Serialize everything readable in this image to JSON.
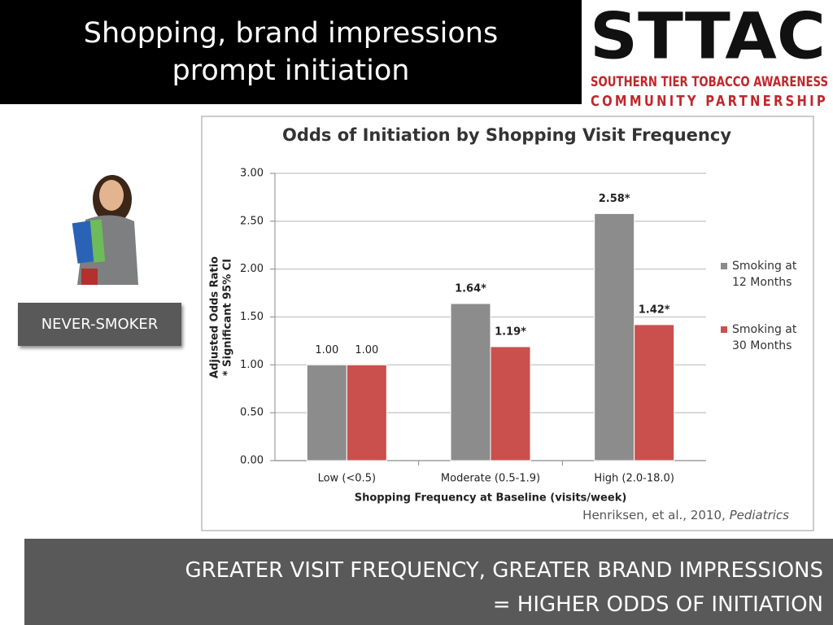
{
  "slide_title": "Shopping, brand impressions prompt initiation",
  "logo": {
    "name": "STTAC",
    "line1": "SOUTHERN TIER TOBACCO AWARENESS",
    "line2": "COMMUNITY PARTNERSHIP"
  },
  "label": "NEVER-SMOKER",
  "citation": {
    "text": "Henriksen, et al., 2010,",
    "journal": "Pediatrics"
  },
  "banner": [
    "GREATER VISIT FREQUENCY,  GREATER BRAND IMPRESSIONS",
    "=  HIGHER ODDS OF INITIATION"
  ],
  "chart_data": {
    "type": "bar",
    "title": "Odds of Initiation by Shopping Visit Frequency",
    "x_label": "Shopping Frequency at Baseline (visits/week)",
    "y_label": [
      "Adjusted Odds Ratio",
      "* Significant 95% CI"
    ],
    "categories": [
      "Low (<0.5)",
      "Moderate (0.5-1.9)",
      "High (2.0-18.0)"
    ],
    "series": [
      {
        "name": "Smoking at 12 Months",
        "color": "#8c8c8c",
        "values": [
          1.0,
          1.64,
          2.58
        ],
        "value_labels": [
          "1.00",
          "1.64*",
          "2.58*"
        ]
      },
      {
        "name": "Smoking at 30 Months",
        "color": "#c9504d",
        "values": [
          1.0,
          1.19,
          1.42
        ],
        "value_labels": [
          "1.00",
          "1.19*",
          "1.42*"
        ]
      }
    ],
    "ylim": [
      0,
      3
    ],
    "yticks": [
      {
        "value": 0,
        "label": "0.00"
      },
      {
        "value": 0.5,
        "label": "0.50"
      },
      {
        "value": 1,
        "label": "1.00"
      },
      {
        "value": 1.5,
        "label": "1.50"
      },
      {
        "value": 2,
        "label": "2.00"
      },
      {
        "value": 2.5,
        "label": "2.50"
      },
      {
        "value": 3,
        "label": "3.00"
      }
    ],
    "grid": true,
    "legend": "right"
  }
}
